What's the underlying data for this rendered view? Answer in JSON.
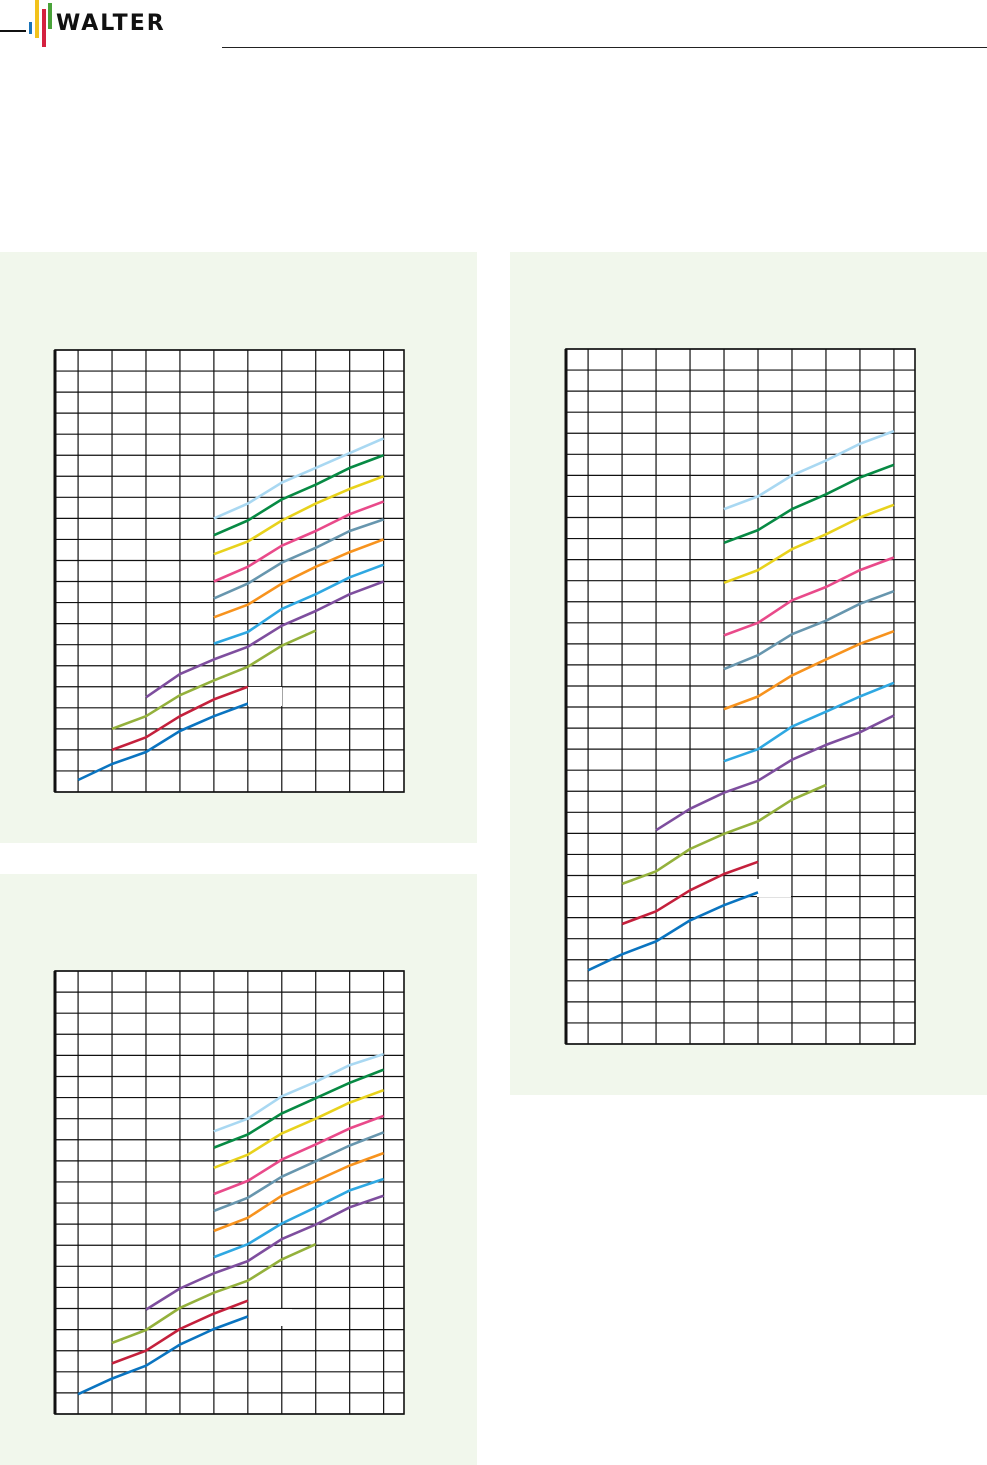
{
  "header": {
    "logo_text": "WALTER",
    "logo_colors": [
      "#1a73b8",
      "#f2c21b",
      "#d4213f",
      "#4aa33a"
    ]
  },
  "colors": {
    "panel_background": "#f1f7ec",
    "grid": "#111111"
  },
  "chart_data": [
    {
      "type": "line",
      "title": "",
      "xlabel": "",
      "ylabel": "",
      "grid": true,
      "xlim": [
        -0.68,
        9.6
      ],
      "ylim": [
        0,
        21
      ],
      "series": [
        {
          "color": "#0a74c0",
          "x": [
            0,
            1,
            2,
            3,
            4,
            5
          ],
          "y": [
            0.57,
            1.33,
            1.9,
            2.9,
            3.6,
            4.2
          ]
        },
        {
          "color": "#c4203c",
          "x": [
            1,
            2,
            3,
            4,
            5
          ],
          "y": [
            2.0,
            2.6,
            3.6,
            4.4,
            5.0
          ]
        },
        {
          "color": "#94b13c",
          "x": [
            1,
            2,
            3,
            4,
            5,
            6,
            7
          ],
          "y": [
            3.0,
            3.6,
            4.6,
            5.3,
            5.95,
            6.95,
            7.67
          ]
        },
        {
          "color": "#7e4e9e",
          "x": [
            2,
            3,
            4,
            5,
            6,
            7,
            8,
            9
          ],
          "y": [
            4.5,
            5.6,
            6.3,
            6.9,
            7.9,
            8.6,
            9.4,
            10.0
          ]
        },
        {
          "color": "#2fa8e2",
          "x": [
            4,
            5,
            6,
            7,
            8,
            9
          ],
          "y": [
            7.05,
            7.6,
            8.7,
            9.4,
            10.2,
            10.8
          ]
        },
        {
          "color": "#f7931e",
          "x": [
            4,
            5,
            6,
            7,
            8,
            9
          ],
          "y": [
            8.3,
            8.9,
            9.9,
            10.7,
            11.4,
            12.0
          ]
        },
        {
          "color": "#6796ae",
          "x": [
            4,
            5,
            6,
            7,
            8,
            9
          ],
          "y": [
            9.2,
            9.9,
            10.9,
            11.6,
            12.4,
            12.95
          ]
        },
        {
          "color": "#e94a8a",
          "x": [
            4,
            5,
            6,
            7,
            8,
            9
          ],
          "y": [
            10.0,
            10.7,
            11.7,
            12.4,
            13.2,
            13.8
          ]
        },
        {
          "color": "#e8d21c",
          "x": [
            4,
            5,
            6,
            7,
            8,
            9
          ],
          "y": [
            11.3,
            11.9,
            12.9,
            13.7,
            14.4,
            15.0
          ]
        },
        {
          "color": "#078a44",
          "x": [
            4,
            5,
            6,
            7,
            8,
            9
          ],
          "y": [
            12.2,
            12.9,
            13.9,
            14.6,
            15.4,
            16.0
          ]
        },
        {
          "color": "#a9d8f2",
          "x": [
            4,
            5,
            6,
            7,
            8,
            9
          ],
          "y": [
            13.0,
            13.7,
            14.7,
            15.4,
            16.1,
            16.8
          ]
        }
      ]
    },
    {
      "type": "line",
      "title": "",
      "xlabel": "",
      "ylabel": "",
      "grid": true,
      "xlim": [
        -0.68,
        9.6
      ],
      "ylim": [
        0,
        21
      ],
      "series": [
        {
          "color": "#0a74c0",
          "x": [
            0,
            1,
            2,
            3,
            4,
            5
          ],
          "y": [
            0.94,
            1.68,
            2.29,
            3.29,
            4.03,
            4.62
          ]
        },
        {
          "color": "#c4203c",
          "x": [
            1,
            2,
            3,
            4,
            5
          ],
          "y": [
            2.4,
            3.0,
            4.03,
            4.76,
            5.37
          ]
        },
        {
          "color": "#94b13c",
          "x": [
            1,
            2,
            3,
            4,
            5,
            6,
            7
          ],
          "y": [
            3.37,
            3.98,
            5.03,
            5.75,
            6.32,
            7.33,
            8.05
          ]
        },
        {
          "color": "#7e4e9e",
          "x": [
            2,
            3,
            4,
            5,
            6,
            7,
            8,
            9
          ],
          "y": [
            4.95,
            5.95,
            6.67,
            7.25,
            8.29,
            8.98,
            9.8,
            10.35
          ]
        },
        {
          "color": "#2fa8e2",
          "x": [
            4,
            5,
            6,
            7,
            8,
            9
          ],
          "y": [
            7.44,
            8.05,
            9.03,
            9.8,
            10.6,
            11.14
          ]
        },
        {
          "color": "#f7931e",
          "x": [
            4,
            5,
            6,
            7,
            8,
            9
          ],
          "y": [
            8.68,
            9.3,
            10.35,
            11.05,
            11.78,
            12.37
          ]
        },
        {
          "color": "#6796ae",
          "x": [
            4,
            5,
            6,
            7,
            8,
            9
          ],
          "y": [
            9.63,
            10.25,
            11.25,
            11.98,
            12.73,
            13.35
          ]
        },
        {
          "color": "#e94a8a",
          "x": [
            4,
            5,
            6,
            7,
            8,
            9
          ],
          "y": [
            10.43,
            11.05,
            12.06,
            12.78,
            13.54,
            14.13
          ]
        },
        {
          "color": "#e8d21c",
          "x": [
            4,
            5,
            6,
            7,
            8,
            9
          ],
          "y": [
            11.67,
            12.29,
            13.3,
            14.0,
            14.76,
            15.35
          ]
        },
        {
          "color": "#078a44",
          "x": [
            4,
            5,
            6,
            7,
            8,
            9
          ],
          "y": [
            12.63,
            13.25,
            14.25,
            14.97,
            15.7,
            16.32
          ]
        },
        {
          "color": "#a9d8f2",
          "x": [
            4,
            5,
            6,
            7,
            8,
            9
          ],
          "y": [
            13.4,
            14.0,
            15.06,
            15.75,
            16.54,
            17.06
          ]
        }
      ]
    },
    {
      "type": "line",
      "title": "",
      "xlabel": "",
      "ylabel": "",
      "grid": true,
      "xlim": [
        -0.65,
        9.62
      ],
      "ylim": [
        0,
        33
      ],
      "series": [
        {
          "color": "#0a74c0",
          "x": [
            0,
            1,
            2,
            3,
            4,
            5
          ],
          "y": [
            3.5,
            4.26,
            4.87,
            5.87,
            6.59,
            7.2
          ]
        },
        {
          "color": "#c4203c",
          "x": [
            1,
            2,
            3,
            4,
            5
          ],
          "y": [
            5.7,
            6.3,
            7.3,
            8.07,
            8.65
          ]
        },
        {
          "color": "#94b13c",
          "x": [
            1,
            2,
            3,
            4,
            5,
            6,
            7
          ],
          "y": [
            7.6,
            8.2,
            9.26,
            9.98,
            10.57,
            11.6,
            12.3
          ]
        },
        {
          "color": "#7e4e9e",
          "x": [
            2,
            3,
            4,
            5,
            6,
            7,
            8,
            9
          ],
          "y": [
            10.15,
            11.17,
            11.93,
            12.5,
            13.5,
            14.2,
            14.8,
            15.6
          ]
        },
        {
          "color": "#2fa8e2",
          "x": [
            4,
            5,
            6,
            7,
            8,
            9
          ],
          "y": [
            13.43,
            14.0,
            15.07,
            15.78,
            16.5,
            17.15
          ]
        },
        {
          "color": "#f7931e",
          "x": [
            4,
            5,
            6,
            7,
            8,
            9
          ],
          "y": [
            15.9,
            16.5,
            17.5,
            18.26,
            19.0,
            19.6
          ]
        },
        {
          "color": "#6796ae",
          "x": [
            4,
            5,
            6,
            7,
            8,
            9
          ],
          "y": [
            17.8,
            18.46,
            19.46,
            20.1,
            20.9,
            21.5
          ]
        },
        {
          "color": "#e94a8a",
          "x": [
            4,
            5,
            6,
            7,
            8,
            9
          ],
          "y": [
            19.4,
            20.0,
            21.07,
            21.7,
            22.5,
            23.1
          ]
        },
        {
          "color": "#e8d21c",
          "x": [
            4,
            5,
            6,
            7,
            8,
            9
          ],
          "y": [
            21.9,
            22.5,
            23.5,
            24.2,
            25.0,
            25.6
          ]
        },
        {
          "color": "#078a44",
          "x": [
            4,
            5,
            6,
            7,
            8,
            9
          ],
          "y": [
            23.8,
            24.4,
            25.4,
            26.1,
            26.9,
            27.5
          ]
        },
        {
          "color": "#a9d8f2",
          "x": [
            4,
            5,
            6,
            7,
            8,
            9
          ],
          "y": [
            25.4,
            26.0,
            27.0,
            27.7,
            28.5,
            29.1
          ]
        }
      ]
    }
  ]
}
